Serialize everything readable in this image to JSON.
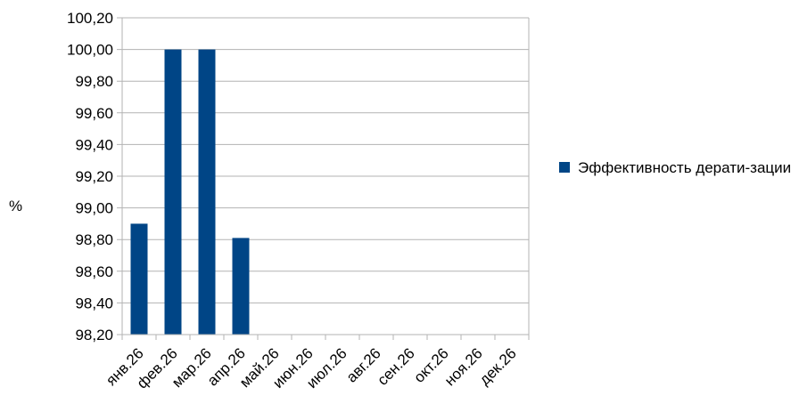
{
  "chart_data": {
    "type": "bar",
    "categories": [
      "янв.26",
      "фев.26",
      "мар.26",
      "апр.26",
      "май.26",
      "июн.26",
      "июл.26",
      "авг.26",
      "сен.26",
      "окт.26",
      "ноя.26",
      "дек.26"
    ],
    "series": [
      {
        "name": "Эффективность дерати-зации",
        "values": [
          98.9,
          100.0,
          100.0,
          98.81,
          null,
          null,
          null,
          null,
          null,
          null,
          null,
          null
        ],
        "color": "#004586"
      }
    ],
    "ylabel": "%",
    "ylim": [
      98.2,
      100.2
    ],
    "yticks": [
      "98,20",
      "98,40",
      "98,60",
      "98,80",
      "99,00",
      "99,20",
      "99,40",
      "99,60",
      "99,80",
      "100,00",
      "100,20"
    ],
    "grid": true,
    "legend_position": "right"
  }
}
